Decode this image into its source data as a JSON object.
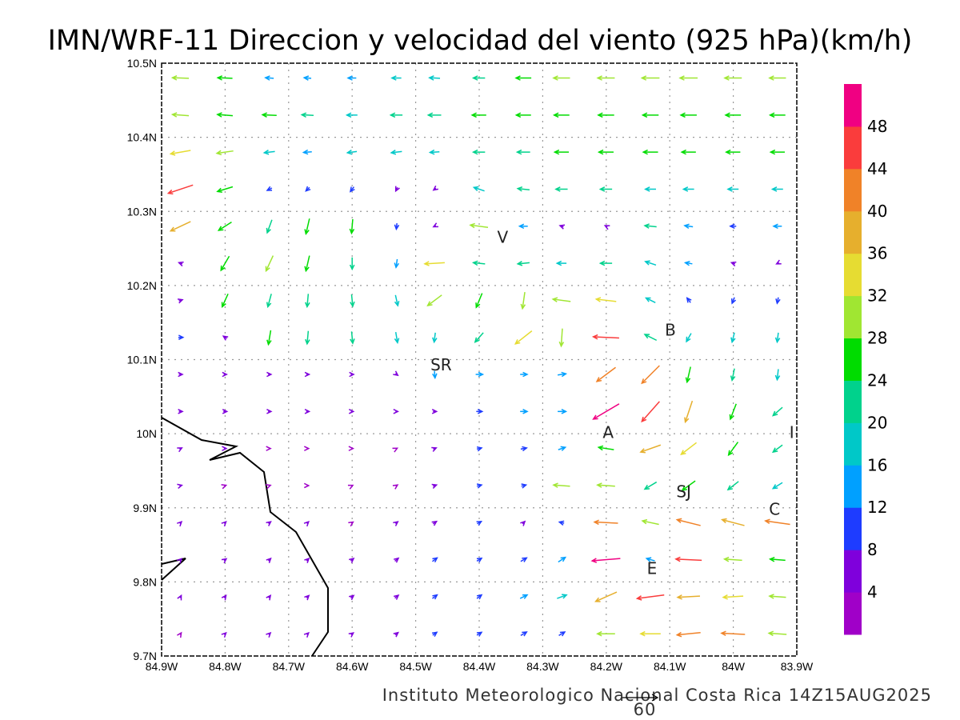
{
  "title": "IMN/WRF-11 Direccion y velocidad del viento (925 hPa)(km/h)",
  "footer": "Instituto Meteorologico Nacional Costa Rica 14Z15AUG2025",
  "reference_vector": {
    "label": "60",
    "speed_kmh": 60
  },
  "chart_data": {
    "type": "vector-field",
    "units": "km/h",
    "xlim_lon_w": [
      84.9,
      83.9
    ],
    "ylim_lat_n": [
      9.7,
      10.5
    ],
    "x_ticks": [
      "84.9W",
      "84.8W",
      "84.7W",
      "84.6W",
      "84.5W",
      "84.4W",
      "84.3W",
      "84.2W",
      "84.1W",
      "84W",
      "83.9W"
    ],
    "y_ticks": [
      "10.5N",
      "10.4N",
      "10.3N",
      "10.2N",
      "10.1N",
      "10N",
      "9.9N",
      "9.8N",
      "9.7N"
    ],
    "grid": true,
    "colorbar": {
      "labels": [
        "48",
        "44",
        "40",
        "36",
        "32",
        "28",
        "24",
        "20",
        "16",
        "12",
        "8",
        "4"
      ],
      "bounds": [
        0,
        4,
        8,
        12,
        16,
        20,
        24,
        28,
        32,
        36,
        40,
        44,
        48,
        52
      ],
      "colors": [
        "#a000c8",
        "#7f00dc",
        "#1e3cff",
        "#00a0ff",
        "#00c8c8",
        "#00d28c",
        "#00dc00",
        "#a0e632",
        "#e6dc32",
        "#e6af2d",
        "#f08228",
        "#fa3c3c",
        "#f00082"
      ]
    },
    "stations": [
      {
        "label": "V",
        "lon": 84.363,
        "lat": 10.265
      },
      {
        "label": "B",
        "lon": 84.099,
        "lat": 10.14
      },
      {
        "label": "SR",
        "lon": 84.46,
        "lat": 10.093
      },
      {
        "label": "A",
        "lon": 84.197,
        "lat": 10.002
      },
      {
        "label": "I",
        "lon": 83.908,
        "lat": 10.002
      },
      {
        "label": "SJ",
        "lon": 84.078,
        "lat": 9.922
      },
      {
        "label": "C",
        "lon": 83.935,
        "lat": 9.898
      },
      {
        "label": "E",
        "lon": 84.128,
        "lat": 9.818
      }
    ],
    "wind_lons_w": [
      84.87,
      84.8,
      84.73,
      84.67,
      84.6,
      84.53,
      84.47,
      84.4,
      84.33,
      84.27,
      84.2,
      84.13,
      84.07,
      84.0,
      83.93
    ],
    "wind_lats_n": [
      10.48,
      10.43,
      10.38,
      10.33,
      10.28,
      10.23,
      10.18,
      10.13,
      10.08,
      10.03,
      9.98,
      9.93,
      9.88,
      9.83,
      9.78,
      9.73
    ],
    "wind_uv_rows": [
      "-28,1 -25,1 -14,1 -12,1 -14,0 -16,0 -18,1 -20,0 -26,0 -28,0 -29,0 -30,0 -30,0 -29,0 -28,0",
      "-28,2 -26,2 -24,1 -20,1 -18,0 -20,0 -22,0 -24,0 -25,0 -26,0 -27,0 -27,0 -27,0 -26,0 -26,0",
      "-34,-6 -28,-4 -18,-2 -14,-1 -16,-2 -18,-2 -16,-1 -20,0 -22,0 -24,0 -25,0 -25,0 -24,0 -24,0 -24,0",
      "-42,-14 -26,-8 -8,-4 -6,-6 -6,-8 -3,-6 -4,-3 -18,6 -20,2 -20,0 -20,0 -18,0 -18,0 -18,0 -18,0",
      "-34,-16 -22,-14 -8,-22 -6,-26 -2,-24 -1,-10 -4,-2 -30,4 -14,0 -6,2 -4,2 -20,2 -14,2 -10,0 -14,0",
      "-6,2 -14,-24 -12,-26 -6,-26 0,-20 -2,-14 -34,-2 -20,2 -20,-2 -16,0 -20,0 -18,6 -12,2 -6,2 -4,-2",
      "6,2 -10,-22 -6,-22 -2,-22 2,-20 4,-18 -24,-18 -10,-24 -4,-28 -30,4 -34,4 -16,8 -6,8 -4,-10 -2,-10",
      "8,0 -6,4 -4,-24 -2,-22 2,-20 3,-18 -2,-16 -14,-16 -28,-22 -2,-30 -44,2 -20,10 -8,-14 -4,-16 -2,-16",
      "6,0 5,0 5,0 5,0 5,0 4,-3 1,-12 12,0 12,0 14,2 -32,-24 -30,-30 -6,-26 -4,-20 -2,-18",
      "6,0 6,0 5,0 5,0 4,0 4,0 6,0 10,0 12,0 14,0 -44,-26 -30,-34 -12,-36 -10,-26 -16,-14",
      "4,2 4,0 3,0 3,0 3,0 2,1 5,2 8,2 10,2 12,4 -26,4 -34,-12 -26,-20 -16,-22 -16,-12",
      "4,1 3,1 3,1 3,0 2,1 3,2 6,2 8,2 8,2 -28,2 -30,2 -20,-12 -22,-16 -18,-14 -16,-10",
      "3,3 3,3 4,3 3,3 3,2 4,3 6,4 7,4 4,4 -8,2 -40,2 -28,6 -40,10 -38,10 -42,6",
      "3,3 4,3 4,4 4,4 5,4 6,5 8,6 8,5 10,6 12,8 -48,-4 -14,4 -44,2 -30,2 -26,2",
      "2,4 3,4 3,4 4,4 5,4 6,5 8,6 8,6 12,6 16,6 -36,-16 -46,-6 -38,-2 -34,-2 -28,2",
      "2,3 3,3 3,3 3,3 4,3 5,4 7,5 8,5 10,6 10,6 -30,0 -34,0 -40,-4 -40,2 -30,2"
    ]
  }
}
